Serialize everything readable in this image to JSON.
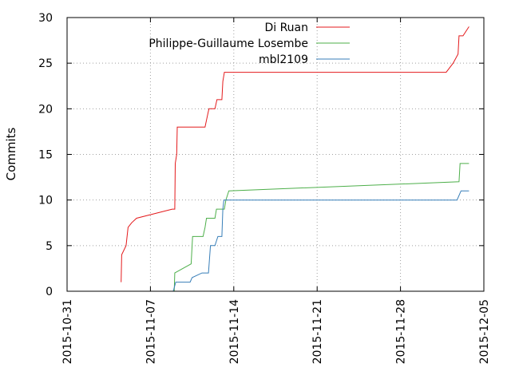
{
  "chart_data": {
    "type": "line",
    "title": "",
    "xlabel": "",
    "ylabel": "Commits",
    "x_axis_type": "date",
    "xlim": [
      "2015-10-31",
      "2015-12-05"
    ],
    "ylim": [
      0,
      30
    ],
    "x_ticks": [
      "2015-10-31",
      "2015-11-07",
      "2015-11-14",
      "2015-11-21",
      "2015-11-28",
      "2015-12-05"
    ],
    "y_ticks": [
      0,
      5,
      10,
      15,
      20,
      25,
      30
    ],
    "grid": {
      "x": true,
      "y": true,
      "style": "dotted"
    },
    "legend_position": "top-right",
    "series": [
      {
        "name": "Di Ruan",
        "color": "#e41a1c",
        "points": [
          [
            "2015-11-04 13:00",
            1
          ],
          [
            "2015-11-04 14:00",
            4
          ],
          [
            "2015-11-04 23:00",
            5
          ],
          [
            "2015-11-05 03:00",
            7
          ],
          [
            "2015-11-05 10:00",
            7.5
          ],
          [
            "2015-11-05 20:00",
            8
          ],
          [
            "2015-11-08 20:00",
            9
          ],
          [
            "2015-11-09 01:00",
            9
          ],
          [
            "2015-11-09 02:00",
            14
          ],
          [
            "2015-11-09 05:00",
            15
          ],
          [
            "2015-11-09 06:00",
            18
          ],
          [
            "2015-11-11 14:00",
            18
          ],
          [
            "2015-11-11 18:00",
            19
          ],
          [
            "2015-11-11 22:00",
            20
          ],
          [
            "2015-11-12 10:00",
            20
          ],
          [
            "2015-11-12 14:00",
            21
          ],
          [
            "2015-11-13 00:00",
            21
          ],
          [
            "2015-11-13 02:00",
            23
          ],
          [
            "2015-11-13 05:00",
            24
          ],
          [
            "2015-12-01 20:00",
            24
          ],
          [
            "2015-12-02 10:00",
            25
          ],
          [
            "2015-12-02 20:00",
            26
          ],
          [
            "2015-12-02 22:00",
            28
          ],
          [
            "2015-12-03 06:00",
            28
          ],
          [
            "2015-12-03 18:00",
            29
          ]
        ]
      },
      {
        "name": "Philippe-Guillaume Losembe",
        "color": "#4daf4a",
        "points": [
          [
            "2015-11-09 00:00",
            0
          ],
          [
            "2015-11-09 01:00",
            2
          ],
          [
            "2015-11-10 10:00",
            3
          ],
          [
            "2015-11-10 13:00",
            6
          ],
          [
            "2015-11-11 10:00",
            6
          ],
          [
            "2015-11-11 14:00",
            7
          ],
          [
            "2015-11-11 17:00",
            8
          ],
          [
            "2015-11-12 10:00",
            8
          ],
          [
            "2015-11-12 13:00",
            9
          ],
          [
            "2015-11-13 05:00",
            9
          ],
          [
            "2015-11-13 08:00",
            10
          ],
          [
            "2015-11-13 14:00",
            11
          ],
          [
            "2015-12-02 22:00",
            12
          ],
          [
            "2015-12-03 00:00",
            14
          ],
          [
            "2015-12-03 18:00",
            14
          ]
        ]
      },
      {
        "name": "mbl2109",
        "color": "#377eb8",
        "points": [
          [
            "2015-11-08 22:00",
            0
          ],
          [
            "2015-11-09 03:00",
            1
          ],
          [
            "2015-11-10 08:00",
            1
          ],
          [
            "2015-11-10 12:00",
            1.5
          ],
          [
            "2015-11-11 08:00",
            2
          ],
          [
            "2015-11-11 21:00",
            2
          ],
          [
            "2015-11-12 01:00",
            5
          ],
          [
            "2015-11-12 10:00",
            5
          ],
          [
            "2015-11-12 16:00",
            6
          ],
          [
            "2015-11-13 00:00",
            6
          ],
          [
            "2015-11-13 02:00",
            9
          ],
          [
            "2015-11-13 04:00",
            10
          ],
          [
            "2015-12-02 18:00",
            10
          ],
          [
            "2015-12-03 02:00",
            11
          ],
          [
            "2015-12-03 18:00",
            11
          ]
        ]
      }
    ]
  }
}
